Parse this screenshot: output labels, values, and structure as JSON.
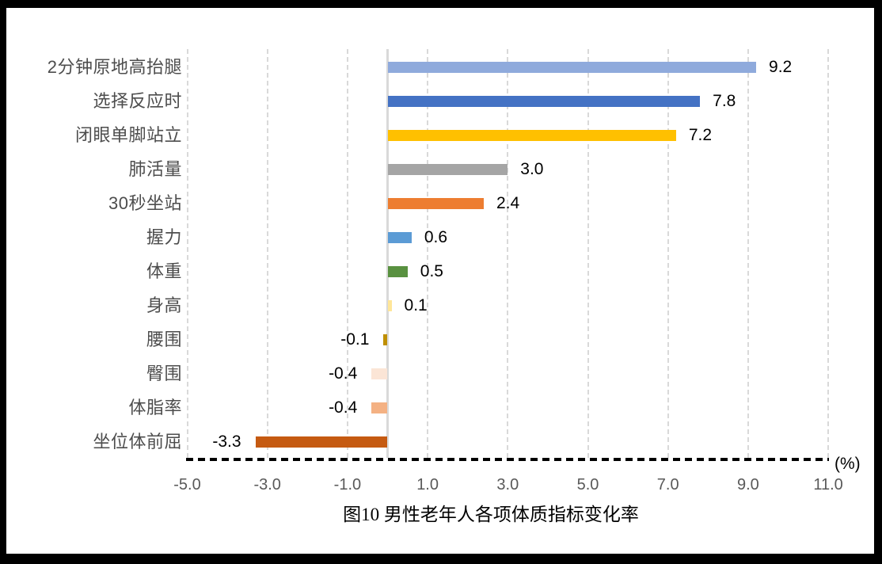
{
  "chart_data": {
    "type": "bar",
    "orientation": "horizontal",
    "title": "图10  男性老年人各项体质指标变化率",
    "unit_label": "(%)",
    "categories": [
      "2分钟原地高抬腿",
      "选择反应时",
      "闭眼单脚站立",
      "肺活量",
      "30秒坐站",
      "握力",
      "体重",
      "身高",
      "腰围",
      "臀围",
      "体脂率",
      "坐位体前屈"
    ],
    "values": [
      9.2,
      7.8,
      7.2,
      3.0,
      2.4,
      0.6,
      0.5,
      0.1,
      -0.1,
      -0.4,
      -0.4,
      -3.3
    ],
    "value_labels": [
      "9.2",
      "7.8",
      "7.2",
      "3.0",
      "2.4",
      "0.6",
      "0.5",
      "0.1",
      "-0.1",
      "-0.4",
      "-0.4",
      "-3.3"
    ],
    "bar_colors": [
      "#8FAADC",
      "#4472C4",
      "#FFC000",
      "#A5A5A5",
      "#ED7D31",
      "#5B9BD5",
      "#599140",
      "#FFE699",
      "#BF8F00",
      "#FBE5D6",
      "#F4B183",
      "#C55A11"
    ],
    "xlim": [
      -5.0,
      11.0
    ],
    "x_ticks": [
      "-5.0",
      "-3.0",
      "-1.0",
      "1.0",
      "3.0",
      "5.0",
      "7.0",
      "9.0",
      "11.0"
    ],
    "x_tick_values": [
      -5,
      -3,
      -1,
      1,
      3,
      5,
      7,
      9,
      11
    ],
    "gridlines": "on",
    "legend": "none",
    "colors": {
      "background": "#FFFFFF",
      "frame": "#000000",
      "gridline": "#D9D9D9",
      "zero_line": "#D9D9D9",
      "axis_line": "#000000",
      "tick_label": "#595959",
      "category_label": "#4D4D4D",
      "value_label": "#000000"
    }
  }
}
